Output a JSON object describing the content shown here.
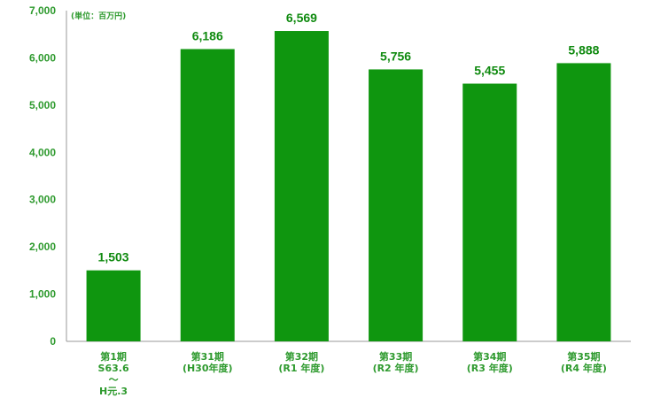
{
  "chart_data": {
    "type": "bar",
    "unit_label": "(単位：百万円)",
    "categories": [
      [
        "第1期",
        "S63.6",
        "〜",
        "H元.3"
      ],
      [
        "第31期",
        "(H30年度)"
      ],
      [
        "第32期",
        "(R1 年度)"
      ],
      [
        "第33期",
        "(R2 年度)"
      ],
      [
        "第34期",
        "(R3 年度)"
      ],
      [
        "第35期",
        "(R4 年度)"
      ]
    ],
    "values": [
      1503,
      6186,
      6569,
      5756,
      5455,
      5888
    ],
    "value_labels": [
      "1,503",
      "6,186",
      "6,569",
      "5,756",
      "5,455",
      "5,888"
    ],
    "yticks": [
      "0",
      "1,000",
      "2,000",
      "3,000",
      "4,000",
      "5,000",
      "6,000",
      "7,000"
    ],
    "ylim": [
      0,
      7000
    ],
    "bar_color": "#0f960f",
    "text_color": "#2e9a2e",
    "grid": false
  }
}
